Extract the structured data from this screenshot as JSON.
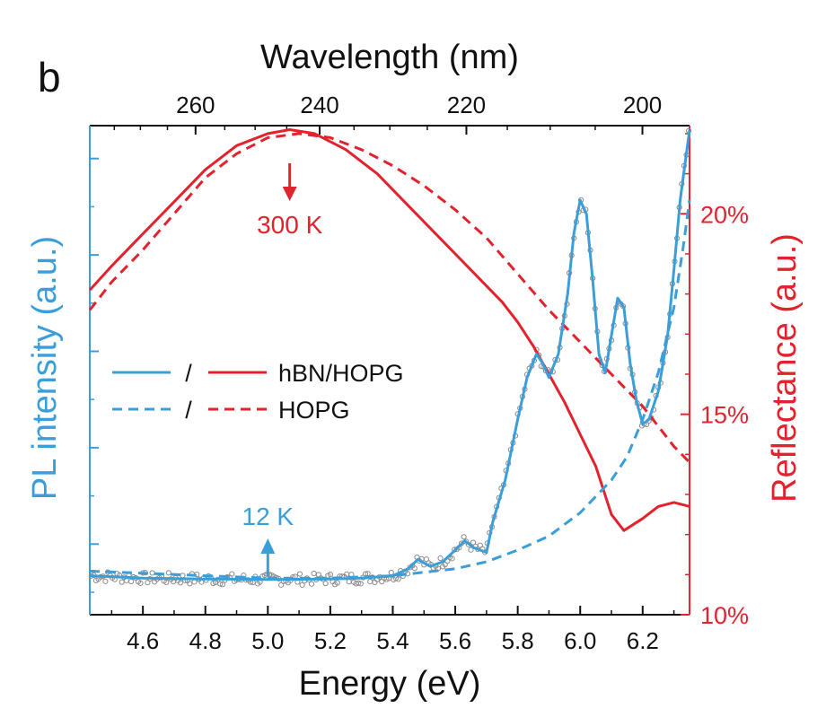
{
  "panel_label": "b",
  "chart_data": {
    "type": "line",
    "xlabel": "Energy (eV)",
    "x2label": "Wavelength (nm)",
    "ylabel_left": "PL intensity (a.u.)",
    "ylabel_right": "Reflectance (a.u.)",
    "xlim": [
      4.43,
      6.35
    ],
    "x_ticks": [
      "4.6",
      "4.8",
      "5.0",
      "5.2",
      "5.4",
      "5.6",
      "5.8",
      "6.0",
      "6.2"
    ],
    "x2_ticks": [
      "260",
      "240",
      "220",
      "200"
    ],
    "y_right_lim": [
      10,
      22.2
    ],
    "y_right_ticks": [
      "10%",
      "15%",
      "20%"
    ],
    "y_left_lim": [
      0,
      1
    ],
    "colors": {
      "pl": "#3a9fd8",
      "reflectance": "#e2232e",
      "raw": "#8c8c8c"
    },
    "legend": {
      "placement": "center-left",
      "separator": "/",
      "entries": [
        "hBN/HOPG",
        "HOPG"
      ]
    },
    "annotations": [
      {
        "text": "300 K",
        "x": 5.07,
        "arrow": "down",
        "series": "reflectance"
      },
      {
        "text": "12 K",
        "x": 5.0,
        "arrow": "up",
        "series": "pl"
      }
    ],
    "series": [
      {
        "axis": "right",
        "style": "solid",
        "color": "reflectance",
        "x": [
          4.43,
          4.5,
          4.6,
          4.7,
          4.8,
          4.9,
          5.0,
          5.07,
          5.15,
          5.25,
          5.35,
          5.45,
          5.55,
          5.65,
          5.75,
          5.8,
          5.85,
          5.9,
          5.95,
          6.0,
          6.05,
          6.1,
          6.14,
          6.2,
          6.25,
          6.3,
          6.35
        ],
        "y": [
          18.1,
          18.7,
          19.5,
          20.3,
          21.1,
          21.7,
          22.0,
          22.1,
          22.0,
          21.6,
          21.0,
          20.2,
          19.4,
          18.6,
          17.8,
          17.3,
          16.7,
          16.0,
          15.3,
          14.5,
          13.7,
          12.5,
          12.1,
          12.4,
          12.7,
          12.8,
          12.7
        ]
      },
      {
        "axis": "right",
        "style": "dashed",
        "color": "reflectance",
        "x": [
          4.43,
          4.5,
          4.6,
          4.7,
          4.8,
          4.9,
          5.0,
          5.1,
          5.2,
          5.3,
          5.4,
          5.5,
          5.6,
          5.7,
          5.8,
          5.9,
          6.0,
          6.1,
          6.2,
          6.3,
          6.35
        ],
        "y": [
          17.6,
          18.3,
          19.1,
          20.0,
          20.9,
          21.5,
          21.9,
          22.0,
          21.9,
          21.6,
          21.2,
          20.7,
          20.1,
          19.4,
          18.5,
          17.6,
          16.8,
          16.0,
          15.2,
          14.2,
          13.8
        ]
      },
      {
        "axis": "left",
        "style": "solid",
        "color": "pl",
        "x": [
          4.43,
          4.6,
          4.8,
          5.0,
          5.2,
          5.3,
          5.4,
          5.45,
          5.48,
          5.52,
          5.56,
          5.6,
          5.63,
          5.66,
          5.7,
          5.72,
          5.76,
          5.8,
          5.83,
          5.86,
          5.88,
          5.9,
          5.93,
          5.96,
          5.98,
          6.0,
          6.02,
          6.04,
          6.06,
          6.08,
          6.1,
          6.12,
          6.14,
          6.16,
          6.18,
          6.2,
          6.22,
          6.25,
          6.28,
          6.3,
          6.32,
          6.34,
          6.35
        ],
        "y": [
          0.045,
          0.04,
          0.038,
          0.037,
          0.038,
          0.04,
          0.045,
          0.06,
          0.08,
          0.065,
          0.075,
          0.1,
          0.12,
          0.105,
          0.095,
          0.16,
          0.25,
          0.38,
          0.47,
          0.52,
          0.5,
          0.47,
          0.52,
          0.65,
          0.78,
          0.85,
          0.82,
          0.68,
          0.52,
          0.48,
          0.56,
          0.64,
          0.62,
          0.5,
          0.42,
          0.37,
          0.38,
          0.44,
          0.56,
          0.7,
          0.85,
          0.95,
          1.0
        ]
      },
      {
        "axis": "left",
        "style": "dashed",
        "color": "pl",
        "x": [
          4.43,
          4.8,
          5.0,
          5.2,
          5.4,
          5.6,
          5.7,
          5.8,
          5.9,
          6.0,
          6.1,
          6.15,
          6.2,
          6.25,
          6.3,
          6.33,
          6.35
        ],
        "y": [
          0.055,
          0.045,
          0.04,
          0.04,
          0.045,
          0.06,
          0.075,
          0.1,
          0.13,
          0.18,
          0.25,
          0.3,
          0.38,
          0.48,
          0.62,
          0.75,
          0.85
        ]
      }
    ]
  }
}
